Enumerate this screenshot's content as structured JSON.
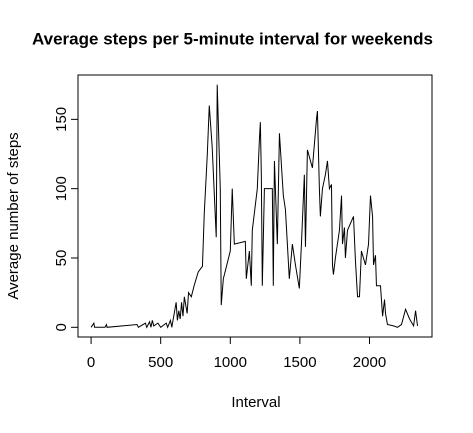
{
  "chart_data": {
    "type": "line",
    "title": "Average steps per 5-minute interval for weekends",
    "x_label": "Interval",
    "y_label": "Average number of steps",
    "xlim": [
      -94,
      2449
    ],
    "ylim": [
      -7,
      182
    ],
    "xticks": [
      0,
      500,
      1000,
      1500,
      2000
    ],
    "yticks": [
      0,
      50,
      100,
      150
    ],
    "color": "#000000",
    "x": [
      0,
      20,
      25,
      100,
      110,
      115,
      330,
      340,
      390,
      400,
      420,
      430,
      440,
      450,
      480,
      500,
      540,
      550,
      570,
      580,
      611,
      620,
      630,
      640,
      650,
      660,
      670,
      690,
      700,
      720,
      740,
      770,
      800,
      813,
      835,
      849,
      870,
      899,
      906,
      928,
      935,
      950,
      1000,
      1014,
      1029,
      1108,
      1115,
      1137,
      1151,
      1158,
      1194,
      1209,
      1216,
      1223,
      1230,
      1245,
      1302,
      1309,
      1317,
      1338,
      1353,
      1381,
      1396,
      1410,
      1424,
      1446,
      1468,
      1496,
      1511,
      1532,
      1540,
      1554,
      1590,
      1619,
      1626,
      1640,
      1647,
      1662,
      1683,
      1698,
      1712,
      1727,
      1734,
      1741,
      1755,
      1784,
      1799,
      1806,
      1820,
      1827,
      1842,
      1885,
      1899,
      1914,
      1928,
      1942,
      1971,
      1993,
      2007,
      2022,
      2029,
      2043,
      2050,
      2079,
      2094,
      2108,
      2115,
      2129,
      2173,
      2201,
      2230,
      2259,
      2288,
      2317,
      2331,
      2345
    ],
    "values": [
      0,
      3,
      0,
      0,
      2,
      0,
      2,
      0,
      3,
      0,
      4,
      0,
      5,
      1,
      3,
      0,
      3,
      0,
      5,
      0,
      18,
      5,
      12,
      6,
      18,
      8,
      22,
      10,
      25,
      22,
      30,
      40,
      44,
      82,
      125,
      160,
      130,
      65,
      175,
      100,
      16,
      35,
      55,
      100,
      60,
      62,
      35,
      55,
      30,
      70,
      100,
      135,
      148,
      110,
      30,
      100,
      100,
      30,
      120,
      60,
      140,
      95,
      85,
      60,
      35,
      60,
      45,
      28,
      60,
      110,
      58,
      128,
      115,
      150,
      156,
      100,
      80,
      100,
      110,
      120,
      100,
      103,
      45,
      38,
      50,
      70,
      95,
      60,
      72,
      50,
      70,
      80,
      48,
      22,
      22,
      55,
      45,
      60,
      95,
      80,
      45,
      52,
      30,
      30,
      8,
      20,
      10,
      2,
      1,
      0,
      2,
      13,
      6,
      1,
      12,
      1
    ]
  }
}
